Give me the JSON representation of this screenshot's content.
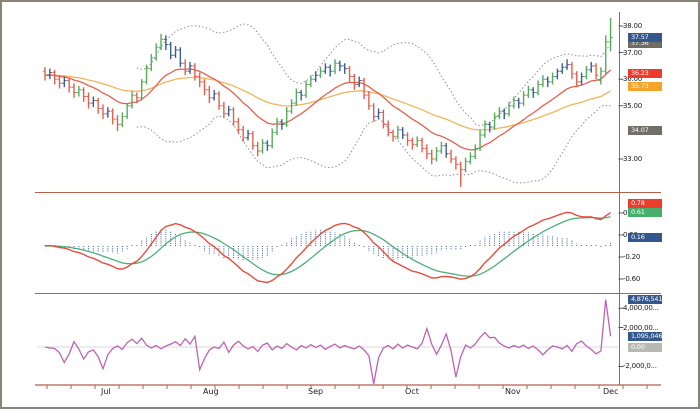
{
  "colors": {
    "frame_border": "#8a8476",
    "axis_line": "#b4604c",
    "candle_up": "#57ab5f",
    "candle_down": "#e4604e",
    "candle_neutral": "#3b5f96",
    "ma_fast": "#e4604e",
    "ma_slow": "#f2b45c",
    "bollinger_band": "#909090",
    "macd_line": "#e74c3c",
    "macd_signal": "#4daf7c",
    "macd_histogram": "#3b5f96",
    "momentum_line": "#bb64b5",
    "zero_line": "#d8d8d8",
    "badge_blue": "#35588c",
    "badge_red": "#ed3b2d",
    "badge_green": "#46b06a",
    "badge_orange": "#f5a42a",
    "badge_dark_gray": "#6e6c64",
    "badge_gray": "#716f68",
    "badge_light_gray": "#b8b8b4",
    "tick_text": "#1a1a1a"
  },
  "chart_data": {
    "type": "candlestick-multi-panel",
    "months": [
      "Jul",
      "Aug",
      "Sep",
      "Oct",
      "Nov",
      "Dec"
    ],
    "price_panel": {
      "ylim": [
        31.6,
        38.5
      ],
      "yticks": [
        {
          "text": "38.00",
          "value": 38.0
        },
        {
          "text": "37.00",
          "value": 37.0
        },
        {
          "text": "36.00",
          "value": 36.0
        },
        {
          "text": "35.00",
          "value": 35.0
        },
        {
          "text": "33.00",
          "value": 33.0
        }
      ],
      "badges": [
        {
          "name": "upper-band-value",
          "text": "37.36",
          "value": 37.36,
          "color": "#6e6c64",
          "z": 1
        },
        {
          "name": "last-price-value",
          "text": "37.57",
          "value": 37.57,
          "color": "#35588c",
          "z": 2
        },
        {
          "name": "ma-fast-value",
          "text": "36.23",
          "value": 36.23,
          "color": "#ed3b2d",
          "z": 2
        },
        {
          "name": "ma-slow-value",
          "text": "35.73",
          "value": 35.73,
          "color": "#f5a42a",
          "z": 1
        },
        {
          "name": "lower-band-value",
          "text": "34.07",
          "value": 34.07,
          "color": "#716f68",
          "z": 1
        }
      ],
      "bars": [
        [
          36.3,
          36.45,
          35.95,
          36.15,
          "r"
        ],
        [
          36.15,
          36.4,
          36.0,
          36.25,
          "b"
        ],
        [
          36.25,
          36.35,
          35.8,
          36.0,
          "r"
        ],
        [
          36.0,
          36.15,
          35.65,
          35.85,
          "r"
        ],
        [
          35.85,
          36.1,
          35.7,
          35.95,
          "b"
        ],
        [
          35.95,
          36.05,
          35.5,
          35.7,
          "r"
        ],
        [
          35.7,
          35.85,
          35.3,
          35.5,
          "r"
        ],
        [
          35.5,
          35.75,
          35.35,
          35.6,
          "g"
        ],
        [
          35.6,
          35.7,
          35.15,
          35.35,
          "r"
        ],
        [
          35.35,
          35.5,
          34.9,
          35.1,
          "r"
        ],
        [
          35.1,
          35.35,
          34.95,
          35.2,
          "b"
        ],
        [
          35.2,
          35.3,
          34.7,
          34.9,
          "r"
        ],
        [
          34.9,
          35.05,
          34.5,
          34.7,
          "r"
        ],
        [
          34.7,
          34.95,
          34.55,
          34.8,
          "b"
        ],
        [
          34.8,
          34.9,
          34.3,
          34.5,
          "r"
        ],
        [
          34.5,
          34.65,
          34.05,
          34.3,
          "r"
        ],
        [
          34.3,
          34.75,
          34.2,
          34.6,
          "g"
        ],
        [
          34.6,
          35.1,
          34.5,
          35.0,
          "g"
        ],
        [
          35.0,
          35.55,
          34.9,
          35.4,
          "g"
        ],
        [
          35.4,
          35.5,
          35.1,
          35.3,
          "r"
        ],
        [
          35.3,
          36.0,
          35.2,
          35.9,
          "g"
        ],
        [
          35.9,
          36.55,
          35.8,
          36.4,
          "g"
        ],
        [
          36.4,
          36.95,
          36.3,
          36.8,
          "g"
        ],
        [
          36.8,
          37.35,
          36.7,
          37.2,
          "g"
        ],
        [
          37.2,
          37.7,
          37.1,
          37.5,
          "g"
        ],
        [
          37.5,
          37.65,
          37.1,
          37.3,
          "b"
        ],
        [
          37.3,
          37.4,
          36.75,
          36.9,
          "b"
        ],
        [
          36.9,
          37.25,
          36.8,
          37.1,
          "b"
        ],
        [
          37.1,
          37.2,
          36.45,
          36.6,
          "b"
        ],
        [
          36.6,
          36.75,
          36.15,
          36.3,
          "r"
        ],
        [
          36.3,
          36.65,
          36.2,
          36.5,
          "b"
        ],
        [
          36.5,
          36.6,
          35.95,
          36.1,
          "r"
        ],
        [
          36.1,
          36.25,
          35.7,
          35.9,
          "r"
        ],
        [
          35.9,
          36.0,
          35.4,
          35.6,
          "r"
        ],
        [
          35.6,
          35.75,
          35.1,
          35.3,
          "r"
        ],
        [
          35.3,
          35.6,
          35.2,
          35.45,
          "b"
        ],
        [
          35.45,
          35.55,
          34.85,
          35.0,
          "r"
        ],
        [
          35.0,
          35.15,
          34.55,
          34.7,
          "r"
        ],
        [
          34.7,
          35.0,
          34.6,
          34.85,
          "b"
        ],
        [
          34.85,
          34.95,
          34.25,
          34.4,
          "r"
        ],
        [
          34.4,
          34.55,
          33.95,
          34.1,
          "r"
        ],
        [
          34.1,
          34.25,
          33.65,
          33.8,
          "r"
        ],
        [
          33.8,
          34.1,
          33.7,
          33.95,
          "b"
        ],
        [
          33.95,
          34.05,
          33.35,
          33.5,
          "r"
        ],
        [
          33.5,
          33.65,
          33.1,
          33.3,
          "r"
        ],
        [
          33.3,
          33.75,
          33.2,
          33.6,
          "g"
        ],
        [
          33.6,
          33.7,
          33.3,
          33.5,
          "b"
        ],
        [
          33.5,
          34.15,
          33.4,
          34.0,
          "g"
        ],
        [
          34.0,
          34.55,
          33.9,
          34.4,
          "g"
        ],
        [
          34.4,
          34.5,
          34.1,
          34.3,
          "b"
        ],
        [
          34.3,
          34.95,
          34.2,
          34.8,
          "g"
        ],
        [
          34.8,
          35.25,
          34.7,
          35.1,
          "g"
        ],
        [
          35.1,
          35.65,
          35.0,
          35.5,
          "g"
        ],
        [
          35.5,
          35.6,
          35.2,
          35.4,
          "b"
        ],
        [
          35.4,
          35.95,
          35.3,
          35.8,
          "g"
        ],
        [
          35.8,
          36.15,
          35.7,
          36.0,
          "g"
        ],
        [
          36.0,
          36.3,
          35.9,
          36.15,
          "b"
        ],
        [
          36.15,
          36.45,
          36.05,
          36.3,
          "g"
        ],
        [
          36.3,
          36.6,
          36.2,
          36.45,
          "b"
        ],
        [
          36.45,
          36.55,
          36.1,
          36.3,
          "b"
        ],
        [
          36.3,
          36.75,
          36.2,
          36.6,
          "g"
        ],
        [
          36.6,
          36.7,
          36.3,
          36.5,
          "b"
        ],
        [
          36.5,
          36.6,
          36.2,
          36.4,
          "b"
        ],
        [
          36.4,
          36.5,
          35.9,
          36.1,
          "r"
        ],
        [
          36.1,
          36.2,
          35.6,
          35.8,
          "r"
        ],
        [
          35.8,
          36.1,
          35.7,
          35.95,
          "b"
        ],
        [
          35.95,
          36.05,
          35.25,
          35.4,
          "r"
        ],
        [
          35.4,
          35.55,
          34.85,
          35.0,
          "r"
        ],
        [
          35.0,
          35.1,
          34.4,
          34.6,
          "r"
        ],
        [
          34.6,
          34.9,
          34.5,
          34.75,
          "b"
        ],
        [
          34.75,
          34.85,
          34.15,
          34.3,
          "r"
        ],
        [
          34.3,
          34.45,
          33.85,
          34.0,
          "r"
        ],
        [
          34.0,
          34.1,
          33.65,
          33.85,
          "r"
        ],
        [
          33.85,
          34.25,
          33.75,
          34.1,
          "g"
        ],
        [
          34.1,
          34.2,
          33.75,
          33.9,
          "b"
        ],
        [
          33.9,
          34.0,
          33.5,
          33.7,
          "r"
        ],
        [
          33.7,
          33.8,
          33.35,
          33.55,
          "r"
        ],
        [
          33.55,
          33.85,
          33.45,
          33.7,
          "g"
        ],
        [
          33.7,
          33.8,
          33.25,
          33.4,
          "r"
        ],
        [
          33.4,
          33.55,
          33.0,
          33.2,
          "r"
        ],
        [
          33.2,
          33.35,
          32.8,
          33.0,
          "r"
        ],
        [
          33.0,
          33.45,
          32.9,
          33.3,
          "g"
        ],
        [
          33.3,
          33.65,
          33.2,
          33.5,
          "g"
        ],
        [
          33.5,
          33.6,
          33.05,
          33.2,
          "b"
        ],
        [
          33.2,
          33.35,
          32.85,
          33.0,
          "r"
        ],
        [
          33.0,
          33.1,
          32.6,
          32.8,
          "r"
        ],
        [
          32.8,
          32.9,
          31.95,
          32.6,
          "r"
        ],
        [
          32.6,
          33.05,
          32.5,
          32.9,
          "g"
        ],
        [
          32.9,
          33.25,
          32.8,
          33.1,
          "g"
        ],
        [
          33.1,
          33.55,
          33.0,
          33.4,
          "g"
        ],
        [
          33.4,
          34.1,
          33.3,
          33.9,
          "g"
        ],
        [
          33.9,
          34.45,
          33.8,
          34.3,
          "g"
        ],
        [
          34.3,
          34.4,
          34.0,
          34.2,
          "b"
        ],
        [
          34.2,
          34.75,
          34.1,
          34.6,
          "g"
        ],
        [
          34.6,
          34.95,
          34.5,
          34.8,
          "g"
        ],
        [
          34.8,
          34.9,
          34.5,
          34.7,
          "b"
        ],
        [
          34.7,
          35.15,
          34.6,
          35.0,
          "g"
        ],
        [
          35.0,
          35.35,
          34.9,
          35.2,
          "g"
        ],
        [
          35.2,
          35.3,
          34.9,
          35.1,
          "b"
        ],
        [
          35.1,
          35.55,
          35.0,
          35.4,
          "g"
        ],
        [
          35.4,
          35.75,
          35.3,
          35.6,
          "g"
        ],
        [
          35.6,
          35.7,
          35.3,
          35.5,
          "b"
        ],
        [
          35.5,
          35.95,
          35.4,
          35.8,
          "g"
        ],
        [
          35.8,
          36.15,
          35.7,
          36.0,
          "g"
        ],
        [
          36.0,
          36.1,
          35.7,
          35.9,
          "b"
        ],
        [
          35.9,
          36.25,
          35.8,
          36.1,
          "g"
        ],
        [
          36.1,
          36.4,
          36.0,
          36.3,
          "b"
        ],
        [
          36.3,
          36.6,
          36.2,
          36.45,
          "b"
        ],
        [
          36.45,
          36.75,
          36.35,
          36.55,
          "b"
        ],
        [
          36.55,
          36.65,
          36.0,
          36.2,
          "r"
        ],
        [
          36.2,
          36.3,
          35.7,
          35.9,
          "r"
        ],
        [
          35.9,
          36.25,
          35.8,
          36.1,
          "b"
        ],
        [
          36.1,
          36.5,
          36.0,
          36.35,
          "g"
        ],
        [
          36.35,
          36.65,
          36.25,
          36.5,
          "b"
        ],
        [
          36.5,
          36.6,
          36.0,
          36.15,
          "r"
        ],
        [
          35.95,
          36.45,
          35.8,
          36.3,
          "g"
        ],
        [
          36.3,
          37.65,
          36.2,
          37.4,
          "g"
        ],
        [
          37.4,
          38.3,
          37.05,
          37.57,
          "g"
        ]
      ]
    },
    "macd_panel": {
      "ylim": [
        -0.95,
        0.95
      ],
      "yticks": [
        {
          "text": "0.60",
          "value": 0.6
        },
        {
          "text": "0.20",
          "value": 0.2
        },
        {
          "text": "-0.20",
          "value": -0.2
        },
        {
          "text": "-0.60",
          "value": -0.6
        }
      ],
      "badges": [
        {
          "name": "macd-line-value",
          "text": "0.78",
          "value": 0.78,
          "color": "#ed3b2d",
          "z": 2
        },
        {
          "name": "macd-signal-value",
          "text": "0.61",
          "value": 0.61,
          "color": "#46b06a",
          "z": 2
        },
        {
          "name": "macd-histogram-value",
          "text": "0.16",
          "value": 0.16,
          "color": "#35588c",
          "z": 2
        }
      ]
    },
    "momentum_panel": {
      "values_unit": "millions",
      "ylim_millions": [
        -4.2,
        5.2
      ],
      "yticks": [
        {
          "text": "4,000,00...",
          "value": 4.0
        },
        {
          "text": "2,000,00...",
          "value": 2.0
        },
        {
          "text": "-2,000,0...",
          "value": -2.0
        }
      ],
      "badges": [
        {
          "name": "momentum-peak-value",
          "text": "4,876,541",
          "value": 4.876541,
          "color": "#35588c",
          "z": 2
        },
        {
          "name": "momentum-last-value",
          "text": "1,095,046",
          "value": 1.095046,
          "color": "#35588c",
          "z": 2
        },
        {
          "name": "momentum-zero-value",
          "text": "0.00",
          "value": 0.0,
          "color": "#b8b8b4",
          "z": 1
        }
      ],
      "values": [
        0.0,
        -0.1,
        -0.15,
        -0.6,
        -1.6,
        -0.7,
        0.55,
        -0.2,
        -1.25,
        -0.5,
        -0.3,
        -1.0,
        -2.25,
        -0.8,
        -0.15,
        0.1,
        -0.25,
        0.45,
        0.8,
        0.35,
        0.9,
        0.2,
        -0.1,
        0.15,
        -0.2,
        0.1,
        0.3,
        0.55,
        0.15,
        0.85,
        0.3,
        1.1,
        -2.35,
        -1.2,
        -0.3,
        0.0,
        -0.15,
        0.5,
        -0.55,
        0.2,
        0.6,
        0.1,
        -0.2,
        0.05,
        -0.45,
        0.2,
        0.4,
        -0.3,
        0.1,
        -0.15,
        0.35,
        0.0,
        -0.3,
        0.15,
        -0.1,
        0.25,
        -0.05,
        0.2,
        -0.25,
        0.05,
        0.3,
        -0.1,
        0.15,
        -0.05,
        -0.2,
        0.1,
        -0.3,
        -0.9,
        -3.85,
        -1.1,
        -0.1,
        0.15,
        -0.2,
        0.3,
        -0.1,
        0.2,
        0.0,
        -0.2,
        0.4,
        1.9,
        0.3,
        -0.75,
        0.2,
        1.35,
        -0.4,
        -3.1,
        -1.0,
        0.2,
        -0.1,
        0.3,
        1.0,
        1.5,
        0.95,
        1.0,
        0.4,
        0.1,
        -0.1,
        0.15,
        -0.05,
        0.2,
        -0.15,
        0.1,
        -0.3,
        -0.8,
        -0.3,
        0.1,
        0.0,
        -0.2,
        0.15,
        -0.45,
        0.35,
        0.6,
        0.1,
        -0.25,
        -0.7,
        -0.4,
        4.88,
        1.1
      ]
    }
  }
}
